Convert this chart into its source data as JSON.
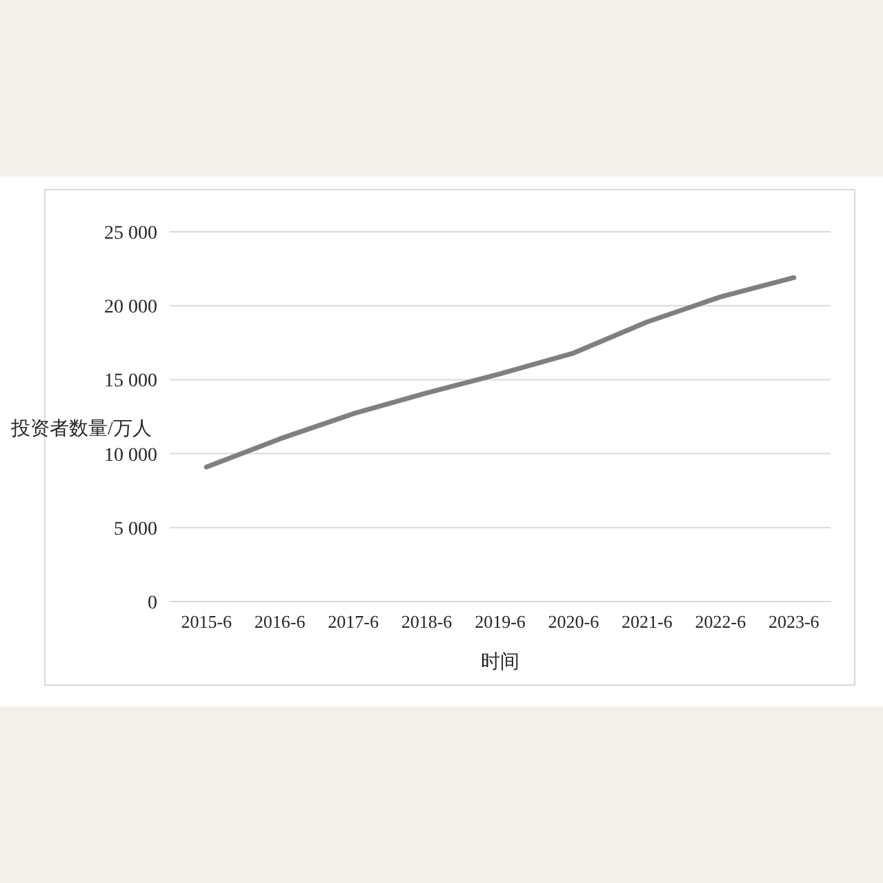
{
  "chart_data": {
    "type": "line",
    "xlabel": "时间",
    "ylabel": "投资者数量/万人",
    "categories": [
      "2015-6",
      "2016-6",
      "2017-6",
      "2018-6",
      "2019-6",
      "2020-6",
      "2021-6",
      "2022-6",
      "2023-6"
    ],
    "series": [
      {
        "color": "#7f7f7f",
        "values": [
          9100,
          11000,
          12700,
          14100,
          15400,
          16800,
          18900,
          20600,
          21900
        ]
      }
    ],
    "ylim": [
      0,
      25000
    ],
    "yticks": [
      0,
      {
        "value": 5000,
        "label": "5 000"
      },
      {
        "value": 10000,
        "label": "10 000"
      },
      {
        "value": 15000,
        "label": "15 000"
      },
      {
        "value": 20000,
        "label": "20 000"
      },
      {
        "value": 25000,
        "label": "25 000"
      }
    ],
    "grid": "y",
    "marker": "none",
    "line_style": "solid"
  }
}
